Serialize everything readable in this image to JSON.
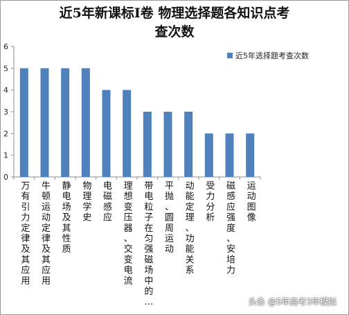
{
  "chart_data": {
    "type": "bar",
    "title_line1": "近5年新课标Ⅰ卷 物理选择题各知识点考",
    "title_line2": "查次数",
    "categories": [
      "万有引力定律及其应用",
      "牛顿运动定律及其应用",
      "静电场及其性质",
      "物理学史",
      "电磁感应",
      "理想变压器、交变电流",
      "带电粒子在匀强磁场中的…",
      "平抛、圆周运动",
      "动能定理、功能关系",
      "受力分析",
      "磁感应强度、安培力",
      "运动图像"
    ],
    "series": [
      {
        "name": "近5年选择题考查次数",
        "color": "#4f81bd",
        "values": [
          5,
          5,
          5,
          5,
          4,
          4,
          3,
          3,
          3,
          2,
          2,
          2
        ]
      }
    ],
    "ylim": [
      0,
      6
    ],
    "yticks": [
      "0",
      "1",
      "2",
      "3",
      "4",
      "5",
      "6"
    ],
    "grid": false,
    "legend_position": "right"
  },
  "watermark": "头条 @5年高考3年模拟"
}
